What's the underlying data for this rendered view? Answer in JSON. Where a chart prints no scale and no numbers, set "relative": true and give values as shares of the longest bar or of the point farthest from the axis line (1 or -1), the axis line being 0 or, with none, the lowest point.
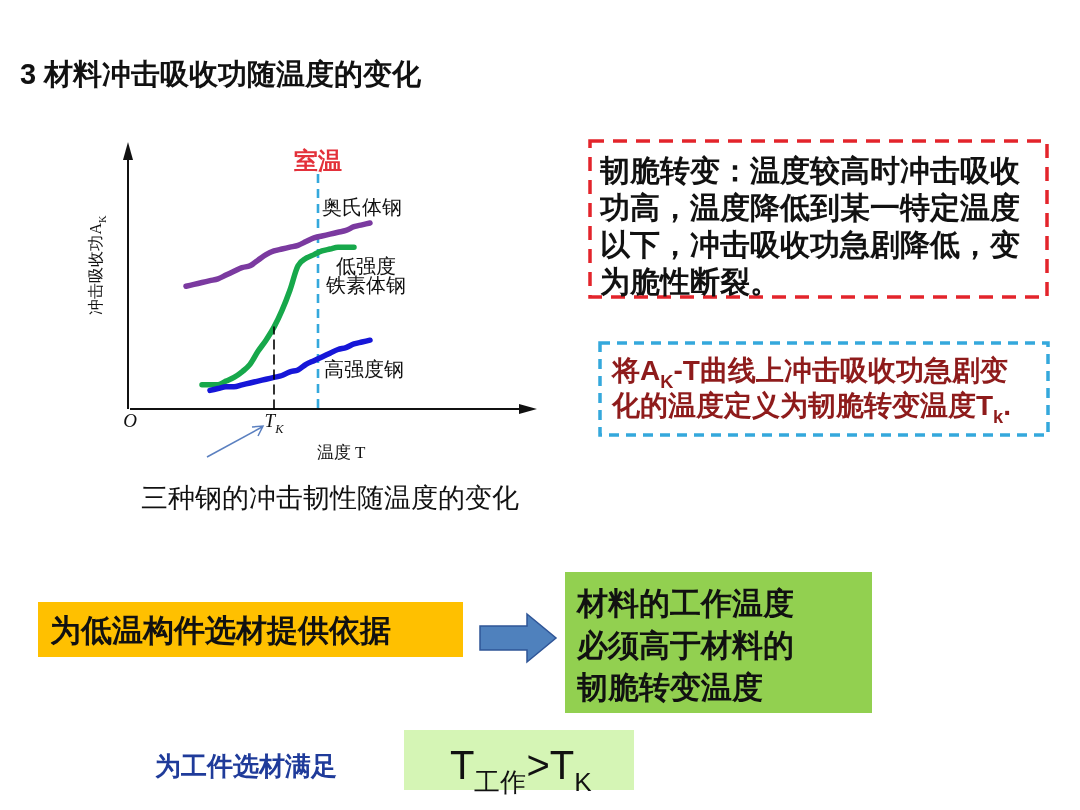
{
  "chart_data": {
    "type": "line",
    "title": "3 材料冲击吸收功随温度的变化",
    "xlabel": "温度 T",
    "ylabel": "冲击吸收功A$_{K}$",
    "relative": true,
    "categories": [
      "O",
      null,
      null,
      null,
      null,
      null,
      null,
      null,
      null,
      null,
      null,
      null,
      null,
      null,
      null,
      null,
      null,
      null,
      "T$_{K}$",
      null,
      null,
      null,
      null,
      null,
      null,
      null,
      null,
      null,
      null,
      null,
      null,
      null,
      null,
      null,
      null,
      null,
      null,
      null,
      null,
      null,
      null,
      null,
      null,
      null,
      null,
      null,
      null,
      null,
      null,
      null,
      null
    ],
    "series": [
      {
        "name": "奥氏体钢",
        "color": "#7b3aa0",
        "values": [
          null,
          null,
          null,
          null,
          null,
          null,
          null,
          0.66,
          0.67,
          0.68,
          0.69,
          0.7,
          0.72,
          0.74,
          0.76,
          0.77,
          0.8,
          0.83,
          0.85,
          0.86,
          0.87,
          0.88,
          0.9,
          0.92,
          0.93,
          0.94,
          0.95,
          0.96,
          0.98,
          0.99,
          1.0,
          null,
          null,
          null,
          null,
          null,
          null,
          null,
          null,
          null,
          null,
          null,
          null,
          null,
          null,
          null,
          null,
          null,
          null,
          null,
          null
        ]
      },
      {
        "name": "低强度铁素体钢",
        "color": "#17a84b",
        "values": [
          null,
          null,
          null,
          null,
          null,
          null,
          null,
          null,
          null,
          0.13,
          0.13,
          0.13,
          0.15,
          0.17,
          0.2,
          0.24,
          0.31,
          0.37,
          0.44,
          0.53,
          0.64,
          0.77,
          0.81,
          0.83,
          0.85,
          0.86,
          0.87,
          0.87,
          0.87,
          null,
          null,
          null,
          null,
          null,
          null,
          null,
          null,
          null,
          null,
          null,
          null,
          null,
          null,
          null,
          null,
          null,
          null,
          null,
          null,
          null,
          null
        ]
      },
      {
        "name": "高强度钢",
        "color": "#1616d8",
        "values": [
          null,
          null,
          null,
          null,
          null,
          null,
          null,
          null,
          null,
          null,
          0.1,
          0.11,
          0.12,
          0.12,
          0.13,
          0.14,
          0.15,
          0.16,
          0.17,
          0.18,
          0.2,
          0.21,
          0.24,
          0.26,
          0.28,
          0.3,
          0.32,
          0.33,
          0.35,
          0.36,
          0.37,
          null,
          null,
          null,
          null,
          null,
          null,
          null,
          null,
          null,
          null,
          null,
          null,
          null,
          null,
          null,
          null,
          null,
          null,
          null,
          null
        ]
      },
      {
        "type": "line",
        "color": "#000000",
        "line_style": "dashed",
        "x": [
          "T$_{K}$",
          "T$_{K}$"
        ],
        "values": [
          0,
          0.44
        ]
      }
    ],
    "annotations": [
      "室温",
      "三种钢的冲击韧性随温度的变化",
      "韧脆转变：温度较高时冲击吸收功高，温度降低到某一特定温度以下，冲击吸收功急剧降低，变为脆性断裂。",
      "将A$_{K}$-T曲线上冲击吸收功急剧变化的温度定义为韧脆转变温度T$_{k}$.",
      "为低温构件选材提供依据",
      "材料的工作温度必须高于材料的韧脆转变温度",
      "为工件选材满足",
      "T$_{工作}$>T$_{K}$"
    ]
  }
}
